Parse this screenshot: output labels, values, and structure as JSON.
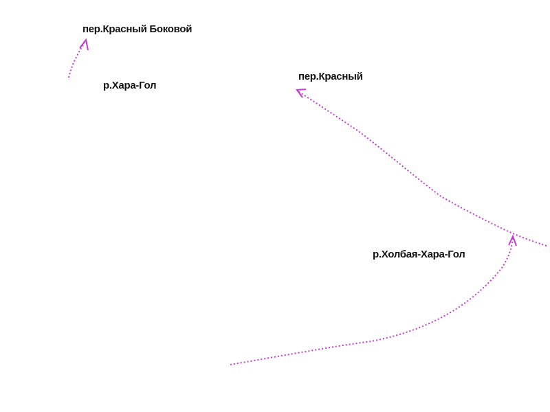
{
  "labels": [
    "пер.Красный Боковой",
    "р.Хара-Гол",
    "пер.Красный",
    "р.Холбая-Хара-Гол"
  ]
}
